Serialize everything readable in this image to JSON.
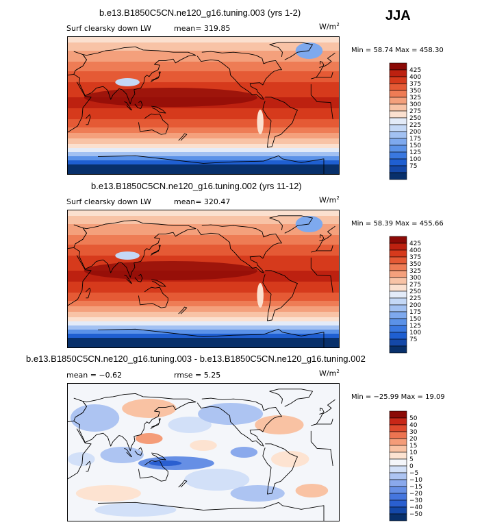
{
  "season": "JJA",
  "panel_colors": [
    "#08306b",
    "#1448a8",
    "#1f5fd1",
    "#3a78e0",
    "#5b92e8",
    "#7ea9ee",
    "#a2c1f2",
    "#c4d8f6",
    "#e3ebf8",
    "#fbe0cf",
    "#f8c3a6",
    "#f4a07c",
    "#ee7c55",
    "#e55a35",
    "#d63a1c",
    "#bd2110",
    "#8b0a06"
  ],
  "diff_colors": [
    "#08306b",
    "#1448a8",
    "#2a5fd0",
    "#4576de",
    "#668fe5",
    "#8aa9ec",
    "#adc4f2",
    "#d2e0f8",
    "#f4f6fa",
    "#fde3d1",
    "#f9c2a3",
    "#f49c78",
    "#ed7451",
    "#df4a2d",
    "#c82717",
    "#8b0a06"
  ],
  "charts": [
    {
      "title": "b.e13.B1850C5CN.ne120_g16.tuning.003 (yrs 1-2)",
      "variable": "Surf clearsky down LW",
      "mean_label": "mean= 319.85",
      "units": "W/m",
      "units_exp": "2",
      "minmax": "Min =  58.74 Max = 458.30",
      "chart_data": {
        "type": "heatmap",
        "title": "b.e13.B1850C5CN.ne120_g16.tuning.003 (yrs 1-2)",
        "variable": "Surf clearsky down LW",
        "mean": 319.85,
        "min": 58.74,
        "max": 458.3,
        "units": "W/m2",
        "colorbar_levels": [
          "425",
          "400",
          "375",
          "350",
          "325",
          "300",
          "275",
          "250",
          "225",
          "200",
          "175",
          "150",
          "125",
          "100",
          "75"
        ]
      }
    },
    {
      "title": "b.e13.B1850C5CN.ne120_g16.tuning.002 (yrs 11-12)",
      "variable": "Surf clearsky down LW",
      "mean_label": "mean= 320.47",
      "units": "W/m",
      "units_exp": "2",
      "minmax": "Min =  58.39 Max = 455.66",
      "chart_data": {
        "type": "heatmap",
        "title": "b.e13.B1850C5CN.ne120_g16.tuning.002 (yrs 11-12)",
        "variable": "Surf clearsky down LW",
        "mean": 320.47,
        "min": 58.39,
        "max": 455.66,
        "units": "W/m2",
        "colorbar_levels": [
          "425",
          "400",
          "375",
          "350",
          "325",
          "300",
          "275",
          "250",
          "225",
          "200",
          "175",
          "150",
          "125",
          "100",
          "75"
        ]
      }
    },
    {
      "title": "b.e13.B1850C5CN.ne120_g16.tuning.003 - b.e13.B1850C5CN.ne120_g16.tuning.002",
      "mean_label": "mean =  −0.62",
      "rmse_label": "rmse =    5.25",
      "units": "W/m",
      "units_exp": "2",
      "minmax": "Min = −25.99 Max =   19.09",
      "chart_data": {
        "type": "heatmap",
        "title": "b.e13.B1850C5CN.ne120_g16.tuning.003 - b.e13.B1850C5CN.ne120_g16.tuning.002",
        "mean": -0.62,
        "rmse": 5.25,
        "min": -25.99,
        "max": 19.09,
        "units": "W/m2",
        "colorbar_levels": [
          "50",
          "40",
          "30",
          "20",
          "15",
          "10",
          "5",
          "0",
          "−5",
          "−10",
          "−15",
          "−20",
          "−30",
          "−40",
          "−50"
        ]
      }
    }
  ]
}
